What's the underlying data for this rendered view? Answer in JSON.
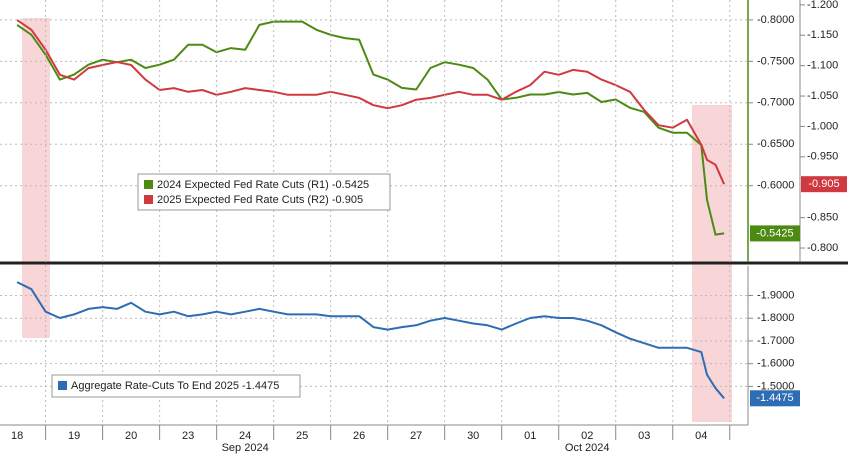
{
  "chart_data": [
    {
      "type": "line",
      "xlim": [
        -0.3,
        12.82
      ],
      "x": [
        0,
        0.25,
        0.5,
        0.75,
        1,
        1.25,
        1.5,
        1.75,
        2,
        2.25,
        2.5,
        2.75,
        3,
        3.25,
        3.5,
        3.75,
        4,
        4.25,
        4.5,
        4.75,
        5,
        5.25,
        5.5,
        5.75,
        6,
        6.25,
        6.5,
        6.75,
        7,
        7.25,
        7.5,
        7.75,
        8,
        8.25,
        8.5,
        8.75,
        9,
        9.25,
        9.5,
        9.75,
        10,
        10.25,
        10.5,
        10.75,
        11,
        11.25,
        11.5,
        11.75,
        12,
        12.1,
        12.25,
        12.4
      ],
      "ylim": [
        -0.508,
        -0.824
      ],
      "yticks": [
        {
          "value": -0.8,
          "label": "-0.8000"
        },
        {
          "value": -0.75,
          "label": "-0.7500"
        },
        {
          "value": -0.7,
          "label": "-0.7000"
        },
        {
          "value": -0.65,
          "label": "-0.6500"
        },
        {
          "value": -0.6,
          "label": "-0.6000"
        }
      ],
      "y2lim": [
        -0.777,
        -1.208
      ],
      "y2ticks": [
        {
          "value": -1.2,
          "label": "-1.200"
        },
        {
          "value": -1.15,
          "label": "-1.150"
        },
        {
          "value": -1.1,
          "label": "-1.100"
        },
        {
          "value": -1.05,
          "label": "-1.050"
        },
        {
          "value": -1.0,
          "label": "-1.000"
        },
        {
          "value": -0.95,
          "label": "-0.950"
        },
        {
          "value": -0.85,
          "label": "-0.850"
        },
        {
          "value": -0.8,
          "label": "-0.800"
        }
      ],
      "grid": true,
      "series": [
        {
          "name": "2024 Expected Fed Rate Cuts (R1) -0.5425",
          "color": "#4c8a12",
          "axis": "y",
          "values": [
            -0.794,
            -0.782,
            -0.758,
            -0.728,
            -0.734,
            -0.746,
            -0.752,
            -0.749,
            -0.752,
            -0.742,
            -0.746,
            -0.752,
            -0.77,
            -0.77,
            -0.761,
            -0.766,
            -0.764,
            -0.794,
            -0.798,
            -0.798,
            -0.798,
            -0.788,
            -0.782,
            -0.778,
            -0.776,
            -0.734,
            -0.728,
            -0.718,
            -0.716,
            -0.742,
            -0.749,
            -0.746,
            -0.742,
            -0.728,
            -0.704,
            -0.706,
            -0.71,
            -0.71,
            -0.713,
            -0.71,
            -0.712,
            -0.701,
            -0.704,
            -0.694,
            -0.689,
            -0.67,
            -0.664,
            -0.664,
            -0.649,
            -0.583,
            -0.541,
            -0.5425
          ]
        },
        {
          "name": "2025 Expected Fed Rate Cuts (R2) -0.905",
          "color": "#d0393f",
          "axis": "y2",
          "values": [
            -1.175,
            -1.159,
            -1.126,
            -1.085,
            -1.077,
            -1.096,
            -1.101,
            -1.106,
            -1.101,
            -1.077,
            -1.06,
            -1.063,
            -1.057,
            -1.06,
            -1.052,
            -1.057,
            -1.063,
            -1.06,
            -1.057,
            -1.052,
            -1.052,
            -1.052,
            -1.057,
            -1.052,
            -1.047,
            -1.035,
            -1.03,
            -1.035,
            -1.044,
            -1.047,
            -1.052,
            -1.057,
            -1.052,
            -1.052,
            -1.044,
            -1.057,
            -1.068,
            -1.09,
            -1.085,
            -1.093,
            -1.09,
            -1.077,
            -1.068,
            -1.057,
            -1.027,
            -1.002,
            -0.998,
            -1.011,
            -0.97,
            -0.945,
            -0.937,
            -0.905
          ]
        }
      ]
    },
    {
      "type": "line",
      "xlim": [
        -0.3,
        12.82
      ],
      "x": [
        0,
        0.25,
        0.5,
        0.75,
        1,
        1.25,
        1.5,
        1.75,
        2,
        2.25,
        2.5,
        2.75,
        3,
        3.25,
        3.5,
        3.75,
        4,
        4.25,
        4.5,
        4.75,
        5,
        5.25,
        5.5,
        5.75,
        6,
        6.25,
        6.5,
        6.75,
        7,
        7.25,
        7.5,
        7.75,
        8,
        8.25,
        8.5,
        8.75,
        9,
        9.25,
        9.5,
        9.75,
        10,
        10.25,
        10.5,
        10.75,
        11,
        11.25,
        11.5,
        11.75,
        12,
        12.1,
        12.25,
        12.4
      ],
      "xticks": [
        {
          "value": 0,
          "label": "18"
        },
        {
          "value": 1,
          "label": "19"
        },
        {
          "value": 2,
          "label": "20"
        },
        {
          "value": 3,
          "label": "23"
        },
        {
          "value": 4,
          "label": "24"
        },
        {
          "value": 5,
          "label": "25"
        },
        {
          "value": 6,
          "label": "26"
        },
        {
          "value": 7,
          "label": "27"
        },
        {
          "value": 8,
          "label": "30"
        },
        {
          "value": 9,
          "label": "01"
        },
        {
          "value": 10,
          "label": "02"
        },
        {
          "value": 11,
          "label": "03"
        },
        {
          "value": 12,
          "label": "04"
        }
      ],
      "month_ticks": [
        {
          "value": 4,
          "label": "Sep 2024"
        },
        {
          "value": 10,
          "label": "Oct 2024"
        }
      ],
      "ylim": [
        -1.33,
        -2.03
      ],
      "yticks": [
        {
          "value": -1.9,
          "label": "-1.9000"
        },
        {
          "value": -1.8,
          "label": "-1.8000"
        },
        {
          "value": -1.7,
          "label": "-1.7000"
        },
        {
          "value": -1.6,
          "label": "-1.6000"
        },
        {
          "value": -1.5,
          "label": "-1.5000"
        }
      ],
      "grid": true,
      "series": [
        {
          "name": "Aggregate Rate-Cuts To End 2025 -1.4475",
          "color": "#2d6db4",
          "axis": "y",
          "values": [
            -1.959,
            -1.928,
            -1.829,
            -1.801,
            -1.817,
            -1.841,
            -1.849,
            -1.841,
            -1.868,
            -1.829,
            -1.817,
            -1.829,
            -1.809,
            -1.817,
            -1.829,
            -1.817,
            -1.829,
            -1.841,
            -1.829,
            -1.817,
            -1.817,
            -1.817,
            -1.809,
            -1.809,
            -1.809,
            -1.761,
            -1.75,
            -1.761,
            -1.769,
            -1.789,
            -1.801,
            -1.789,
            -1.777,
            -1.769,
            -1.75,
            -1.777,
            -1.801,
            -1.809,
            -1.801,
            -1.801,
            -1.789,
            -1.769,
            -1.738,
            -1.71,
            -1.69,
            -1.67,
            -1.67,
            -1.67,
            -1.651,
            -1.552,
            -1.492,
            -1.4475
          ]
        }
      ]
    }
  ]
}
